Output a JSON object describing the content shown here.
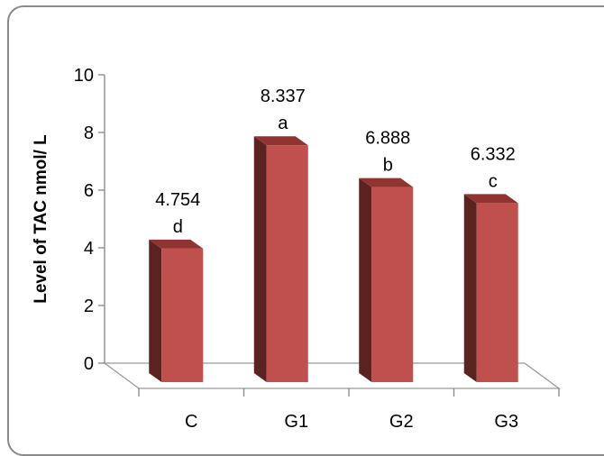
{
  "chart_data": {
    "type": "bar",
    "style": "3d-column",
    "categories": [
      "C",
      "G1",
      "G2",
      "G3"
    ],
    "values": [
      4.754,
      8.337,
      6.888,
      6.332
    ],
    "value_labels": [
      "4.754",
      "8.337",
      "6.888",
      "6.332"
    ],
    "significance_letters": [
      "d",
      "a",
      "b",
      "c"
    ],
    "title": "",
    "xlabel": "",
    "ylabel": "Level of TAC nmol/ L",
    "ylim": [
      0,
      10
    ],
    "yticks": [
      0,
      2,
      4,
      6,
      8,
      10
    ],
    "grid": false,
    "legend": "none",
    "colors": {
      "bar_front": "#c0504d",
      "bar_side": "#5a2220",
      "bar_top": "#8f3431",
      "floor": "#9a9a9a",
      "axis": "#868686"
    }
  }
}
